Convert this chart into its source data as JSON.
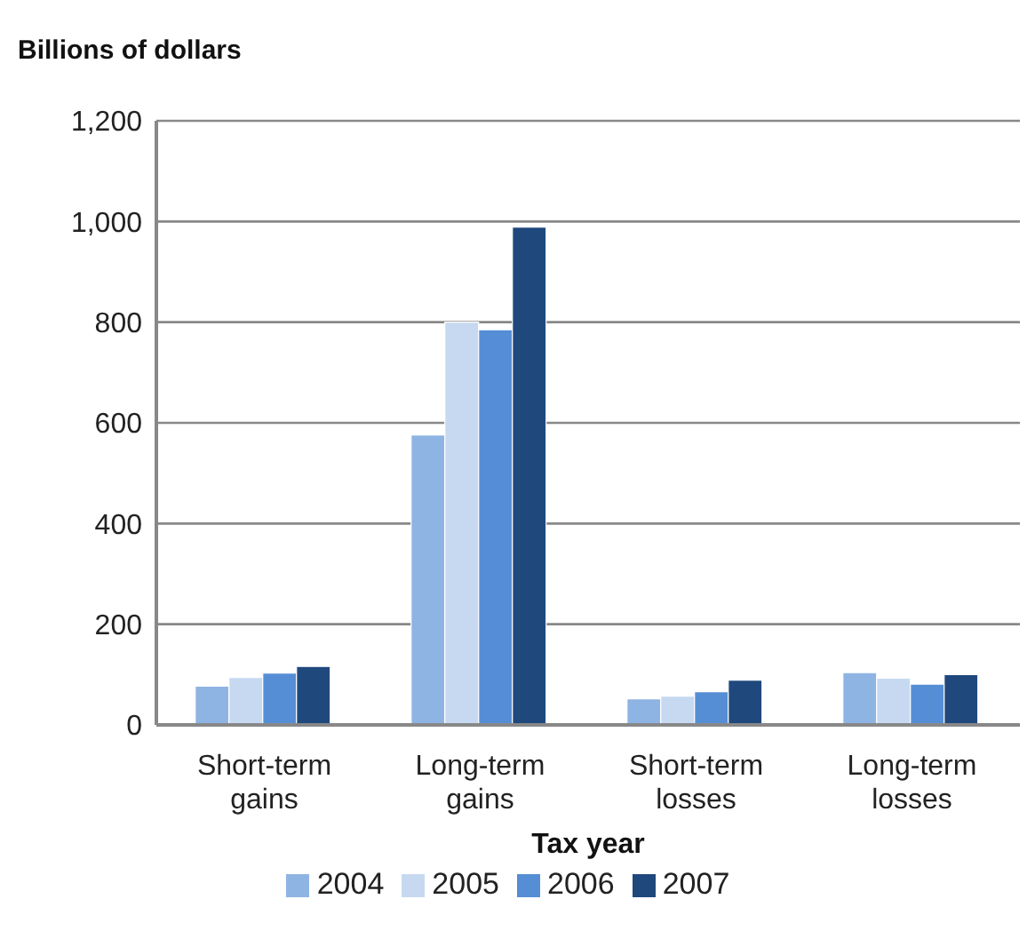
{
  "chart_data": {
    "type": "bar",
    "ylabel": "Billions of dollars",
    "xlabel": "Tax year",
    "categories": [
      "Short-term gains",
      "Long-term gains",
      "Short-term losses",
      "Long-term losses"
    ],
    "series": [
      {
        "name": "2004",
        "color": "#8eb4e3",
        "values": [
          77,
          576,
          52,
          104
        ]
      },
      {
        "name": "2005",
        "color": "#c6d9f1",
        "values": [
          94,
          800,
          57,
          93
        ]
      },
      {
        "name": "2006",
        "color": "#558ed5",
        "values": [
          103,
          785,
          66,
          81
        ]
      },
      {
        "name": "2007",
        "color": "#1f497d",
        "values": [
          116,
          989,
          89,
          100
        ]
      }
    ],
    "ylim": [
      0,
      1200
    ],
    "yticks": [
      0,
      200,
      400,
      600,
      800,
      {
        "value": 1000,
        "label": "1,000"
      },
      {
        "value": 1200,
        "label": "1,200"
      }
    ],
    "grid": "y",
    "legend": "bottom"
  }
}
